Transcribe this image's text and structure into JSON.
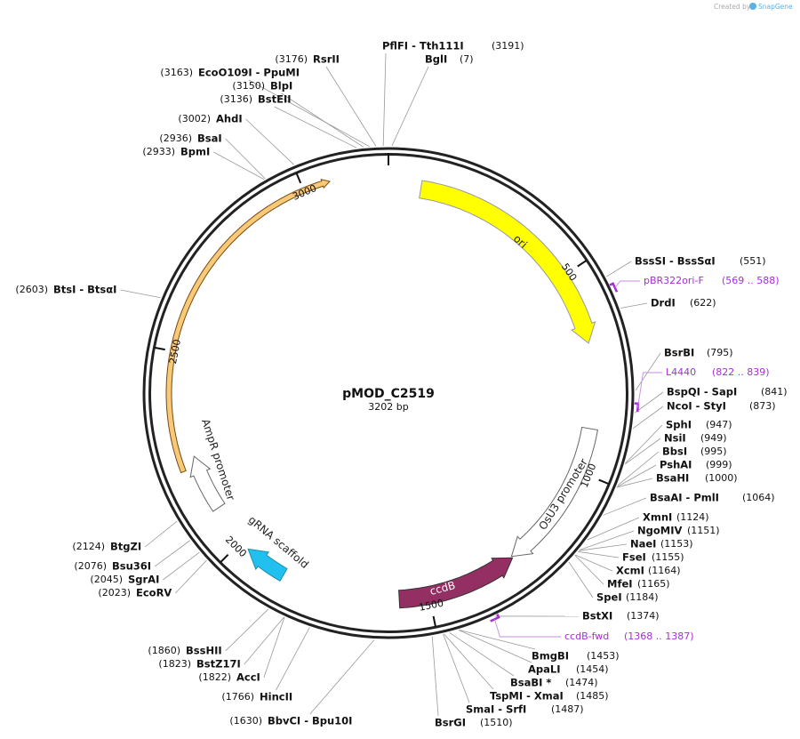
{
  "credit": {
    "prefix": "Created by",
    "brand": "SnapGene"
  },
  "map": {
    "name": "pMOD_C2519",
    "length": "3202 bp",
    "ticks": [
      500,
      1000,
      1500,
      2000,
      2500,
      3000
    ]
  },
  "features": [
    {
      "label": "ori"
    },
    {
      "label": "OsU3 promoter"
    },
    {
      "label": "ccdB"
    },
    {
      "label": "gRNA scaffold"
    },
    {
      "label": "AmpR promoter"
    }
  ],
  "primers": [
    {
      "label": "pBR322ori-F",
      "range": "(569 .. 588)"
    },
    {
      "label": "L4440",
      "range": "(822 .. 839)"
    },
    {
      "label": "ccdB-fwd",
      "range": "(1368 .. 1387)"
    }
  ],
  "sites": [
    {
      "name": "PflFI  -  Tth111I",
      "pos": "(3191)"
    },
    {
      "name": "BglI",
      "pos": "(7)"
    },
    {
      "name": "RsrII",
      "pos": "(3176)"
    },
    {
      "name": "EcoO109I  -  PpuMI",
      "pos": "(3163)"
    },
    {
      "name": "BlpI",
      "pos": "(3150)"
    },
    {
      "name": "BstEII",
      "pos": "(3136)"
    },
    {
      "name": "AhdI",
      "pos": "(3002)"
    },
    {
      "name": "BsaI",
      "pos": "(2936)"
    },
    {
      "name": "BpmI",
      "pos": "(2933)"
    },
    {
      "name": "BtsI  -  BtsαI",
      "pos": "(2603)"
    },
    {
      "name": "BtgZI",
      "pos": "(2124)"
    },
    {
      "name": "Bsu36I",
      "pos": "(2076)"
    },
    {
      "name": "SgrAI",
      "pos": "(2045)"
    },
    {
      "name": "EcoRV",
      "pos": "(2023)"
    },
    {
      "name": "BssHII",
      "pos": "(1860)"
    },
    {
      "name": "BstZ17I",
      "pos": "(1823)"
    },
    {
      "name": "AccI",
      "pos": "(1822)"
    },
    {
      "name": "HincII",
      "pos": "(1766)"
    },
    {
      "name": "BbvCI  -  Bpu10I",
      "pos": "(1630)"
    },
    {
      "name": "BsrGI",
      "pos": "(1510)"
    },
    {
      "name": "SmaI  -  SrfI",
      "pos": "(1487)"
    },
    {
      "name": "TspMI  -  XmaI",
      "pos": "(1485)"
    },
    {
      "name": "BsaBI *",
      "pos": "(1474)"
    },
    {
      "name": "ApaLI",
      "pos": "(1454)"
    },
    {
      "name": "BmgBI",
      "pos": "(1453)"
    },
    {
      "name": "BstXI",
      "pos": "(1374)"
    },
    {
      "name": "SpeI",
      "pos": "(1184)"
    },
    {
      "name": "MfeI",
      "pos": "(1165)"
    },
    {
      "name": "XcmI",
      "pos": "(1164)"
    },
    {
      "name": "FseI",
      "pos": "(1155)"
    },
    {
      "name": "NaeI",
      "pos": "(1153)"
    },
    {
      "name": "NgoMIV",
      "pos": "(1151)"
    },
    {
      "name": "XmnI",
      "pos": "(1124)"
    },
    {
      "name": "BsaAI  -  PmlI",
      "pos": "(1064)"
    },
    {
      "name": "BsaHI",
      "pos": "(1000)"
    },
    {
      "name": "PshAI",
      "pos": "(999)"
    },
    {
      "name": "BbsI",
      "pos": "(995)"
    },
    {
      "name": "NsiI",
      "pos": "(949)"
    },
    {
      "name": "SphI",
      "pos": "(947)"
    },
    {
      "name": "NcoI  -  StyI",
      "pos": "(873)"
    },
    {
      "name": "BspQI  -  SapI",
      "pos": "(841)"
    },
    {
      "name": "BsrBI",
      "pos": "(795)"
    },
    {
      "name": "DrdI",
      "pos": "(622)"
    },
    {
      "name": "BssSI  -  BssSαI",
      "pos": "(551)"
    }
  ]
}
